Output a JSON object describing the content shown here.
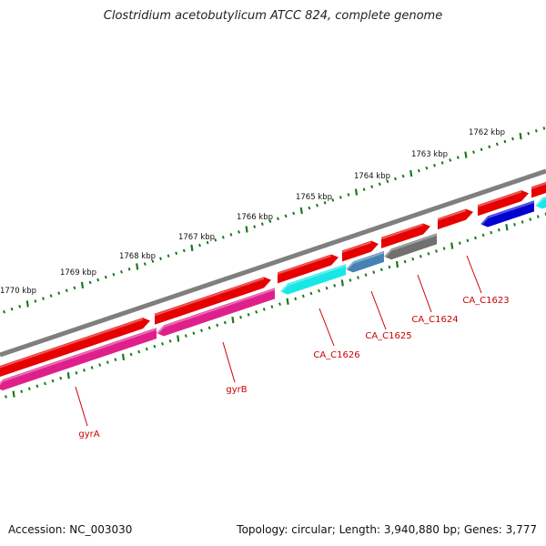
{
  "title": "Clostridium acetobutylicum ATCC 824, complete genome",
  "footer": {
    "accession_label": "Accession:",
    "accession": "NC_003030",
    "topology_label": "Topology:",
    "topology": "circular",
    "length_label": "Length:",
    "length": "3,940,880 bp",
    "genes_label": "Genes:",
    "genes": "3,777"
  },
  "scale": {
    "unit": "kbp",
    "ticks": [
      "1762 kbp",
      "1763 kbp",
      "1764 kbp",
      "1765 kbp",
      "1766 kbp",
      "1767 kbp",
      "1768 kbp",
      "1769 kbp",
      "1770 kbp"
    ]
  },
  "colors": {
    "background": "#ffffff",
    "tick": "#1a7a1a",
    "backbone": "#808080",
    "label": "#cc0000",
    "gene_red": "#e60000",
    "gene_magenta": "#e0208a",
    "gene_cyan": "#19e6e6",
    "gene_steelblue": "#4682b4",
    "gene_gray": "#707070",
    "gene_blue": "#0000d0"
  },
  "genes": [
    {
      "name": "gyrA",
      "strand": "reverse",
      "color": "gene_magenta"
    },
    {
      "name": "gyrB",
      "strand": "reverse",
      "color": "gene_magenta"
    },
    {
      "name": "CA_C1626",
      "strand": "reverse",
      "color": "gene_cyan"
    },
    {
      "name": "CA_C1625",
      "strand": "reverse",
      "color": "gene_steelblue"
    },
    {
      "name": "CA_C1624",
      "strand": "reverse",
      "color": "gene_gray"
    },
    {
      "name": "CA_C1623",
      "strand": "reverse",
      "color": "gene_blue"
    }
  ]
}
